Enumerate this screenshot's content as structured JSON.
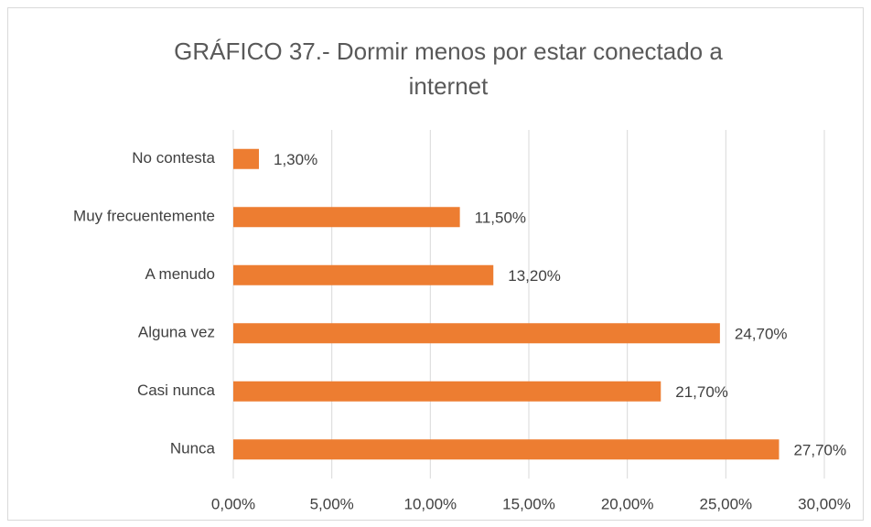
{
  "chart_data": {
    "type": "barh",
    "title": [
      "GRÁFICO 37.- Dormir menos por estar conectado a",
      "internet"
    ],
    "categories": [
      "No contesta",
      "Muy frecuentemente",
      "A menudo",
      "Alguna vez",
      "Casi nunca",
      "Nunca"
    ],
    "values": [
      1.3,
      11.5,
      13.2,
      24.7,
      21.7,
      27.7
    ],
    "value_labels": [
      "1,30%",
      "11,50%",
      "13,20%",
      "24,70%",
      "21,70%",
      "27,70%"
    ],
    "color": "#ed7d31",
    "xlim": [
      0,
      30
    ],
    "xticks": [
      {
        "value": 0,
        "label": "0,00%"
      },
      {
        "value": 5,
        "label": "5,00%"
      },
      {
        "value": 10,
        "label": "10,00%"
      },
      {
        "value": 15,
        "label": "15,00%"
      },
      {
        "value": 20,
        "label": "20,00%"
      },
      {
        "value": 25,
        "label": "25,00%"
      },
      {
        "value": 30,
        "label": "30,00%"
      }
    ],
    "grid": true
  }
}
